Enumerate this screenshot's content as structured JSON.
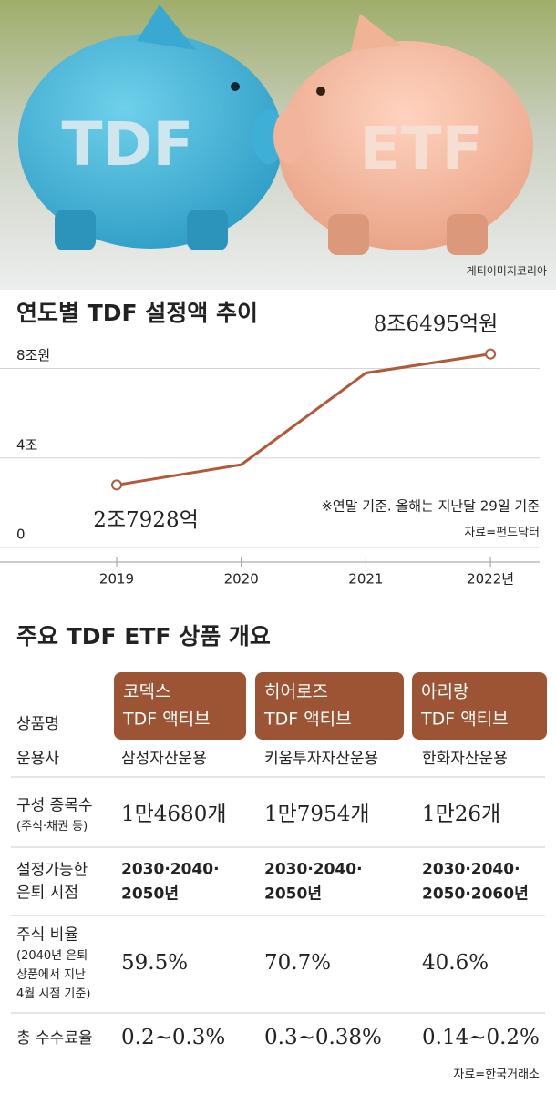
{
  "photo": {
    "labels": [
      "TDF",
      "ETF"
    ],
    "credit": "게티이미지코리아"
  },
  "chart_data": {
    "type": "line",
    "title": "연도별 TDF 설정액 추이",
    "categories": [
      "2019",
      "2020",
      "2021",
      "2022년"
    ],
    "values": [
      2.7928,
      3.7,
      7.8,
      8.6495
    ],
    "value_labels": [
      "2조7928억",
      null,
      null,
      "8조6495억원"
    ],
    "color": "#b05a3c",
    "ylim": [
      0,
      9
    ],
    "yticks": [
      0,
      {
        "value": 4,
        "label": "4조"
      },
      {
        "value": 8,
        "label": "8조원"
      }
    ],
    "grid": true,
    "annotations": [
      "※연말 기준. 올해는 지난달 29일 기준",
      "자료=펀드닥터"
    ]
  },
  "table": {
    "title": "주요 TDF ETF 상품 개요",
    "header_label": "상품명",
    "columns": [
      [
        "코덱스",
        "TDF 액티브"
      ],
      [
        "히어로즈",
        "TDF 액티브"
      ],
      [
        "아리랑",
        "TDF 액티브"
      ]
    ],
    "rows": [
      {
        "label": [
          "운용사"
        ],
        "cells": [
          [
            "삼성자산운용"
          ],
          [
            "키움투자자산운용"
          ],
          [
            "한화자산운용"
          ]
        ]
      },
      {
        "label": [
          "구성 종목수"
        ],
        "note": [
          "(주식·채권 등)"
        ],
        "cells": [
          [
            "1만4680개"
          ],
          [
            "1만7954개"
          ],
          [
            "1만26개"
          ]
        ]
      },
      {
        "label": [
          "설정가능한",
          "은퇴 시점"
        ],
        "cells": [
          [
            "2030·2040·",
            "2050년"
          ],
          [
            "2030·2040·",
            "2050년"
          ],
          [
            "2030·2040·",
            "2050·2060년"
          ]
        ]
      },
      {
        "label": [
          "주식 비율"
        ],
        "note": [
          "(2040년 은퇴",
          "상품에서 지난",
          "4월 시점 기준)"
        ],
        "cells": [
          [
            "59.5%"
          ],
          [
            "70.7%"
          ],
          [
            "40.6%"
          ]
        ]
      },
      {
        "label": [
          "총 수수료율"
        ],
        "cells": [
          [
            "0.2~0.3%"
          ],
          [
            "0.3~0.38%"
          ],
          [
            "0.14~0.2%"
          ]
        ]
      }
    ],
    "source": "자료=한국거래소"
  }
}
